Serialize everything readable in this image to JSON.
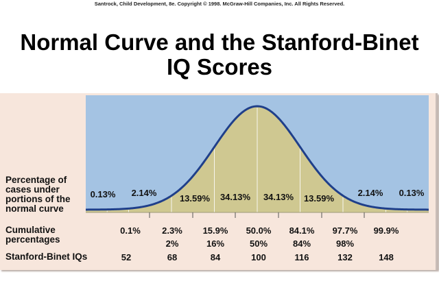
{
  "header": {
    "copyright": "Santrock, Child Development, 8e. Copyright © 1998. McGraw-Hill Companies, Inc. All Rights Reserved.",
    "title_line1": "Normal Curve and the Stanford-Binet",
    "title_line2": "IQ Scores"
  },
  "row_labels": {
    "percentage": [
      "Percentage of",
      "cases under",
      "portions of the",
      "normal curve"
    ],
    "cumulative": [
      "Cumulative",
      "percentages"
    ],
    "iq": "Stanford-Binet IQs"
  },
  "segment_percentages": [
    "0.13%",
    "2.14%",
    "13.59%",
    "34.13%",
    "34.13%",
    "13.59%",
    "2.14%",
    "0.13%"
  ],
  "cumulative_exact": [
    "0.1%",
    "2.3%",
    "15.9%",
    "50.0%",
    "84.1%",
    "97.7%",
    "99.9%"
  ],
  "cumulative_rounded": [
    "",
    "2%",
    "16%",
    "50%",
    "84%",
    "98%",
    ""
  ],
  "iq_scores": [
    "52",
    "68",
    "84",
    "100",
    "116",
    "132",
    "148"
  ],
  "colors": {
    "background_panel": "#f7e6dc",
    "sky": "#a4c3e3",
    "curve_fill": "#cfc891",
    "curve_line": "#1f3f8a",
    "divider": "#ffffff"
  },
  "chart_data": {
    "type": "area",
    "title": "Normal Curve and the Stanford-Binet IQ Scores",
    "xlabel": "Stanford-Binet IQs",
    "ylabel": "Percentage of cases under portions of the normal curve",
    "mean": 100,
    "sd": 16,
    "x_ticks": [
      52,
      68,
      84,
      100,
      116,
      132,
      148
    ],
    "segments": [
      {
        "range": "<52",
        "percent": 0.13
      },
      {
        "range": "52-68",
        "percent": 2.14
      },
      {
        "range": "68-84",
        "percent": 13.59
      },
      {
        "range": "84-100",
        "percent": 34.13
      },
      {
        "range": "100-116",
        "percent": 34.13
      },
      {
        "range": "116-132",
        "percent": 13.59
      },
      {
        "range": "132-148",
        "percent": 2.14
      },
      {
        "range": ">148",
        "percent": 0.13
      }
    ],
    "cumulative_percentages": [
      {
        "iq": 52,
        "exact": 0.1,
        "rounded": null
      },
      {
        "iq": 68,
        "exact": 2.3,
        "rounded": 2
      },
      {
        "iq": 84,
        "exact": 15.9,
        "rounded": 16
      },
      {
        "iq": 100,
        "exact": 50.0,
        "rounded": 50
      },
      {
        "iq": 116,
        "exact": 84.1,
        "rounded": 84
      },
      {
        "iq": 132,
        "exact": 97.7,
        "rounded": 98
      },
      {
        "iq": 148,
        "exact": 99.9,
        "rounded": null
      }
    ],
    "grid": false,
    "legend": "none"
  }
}
